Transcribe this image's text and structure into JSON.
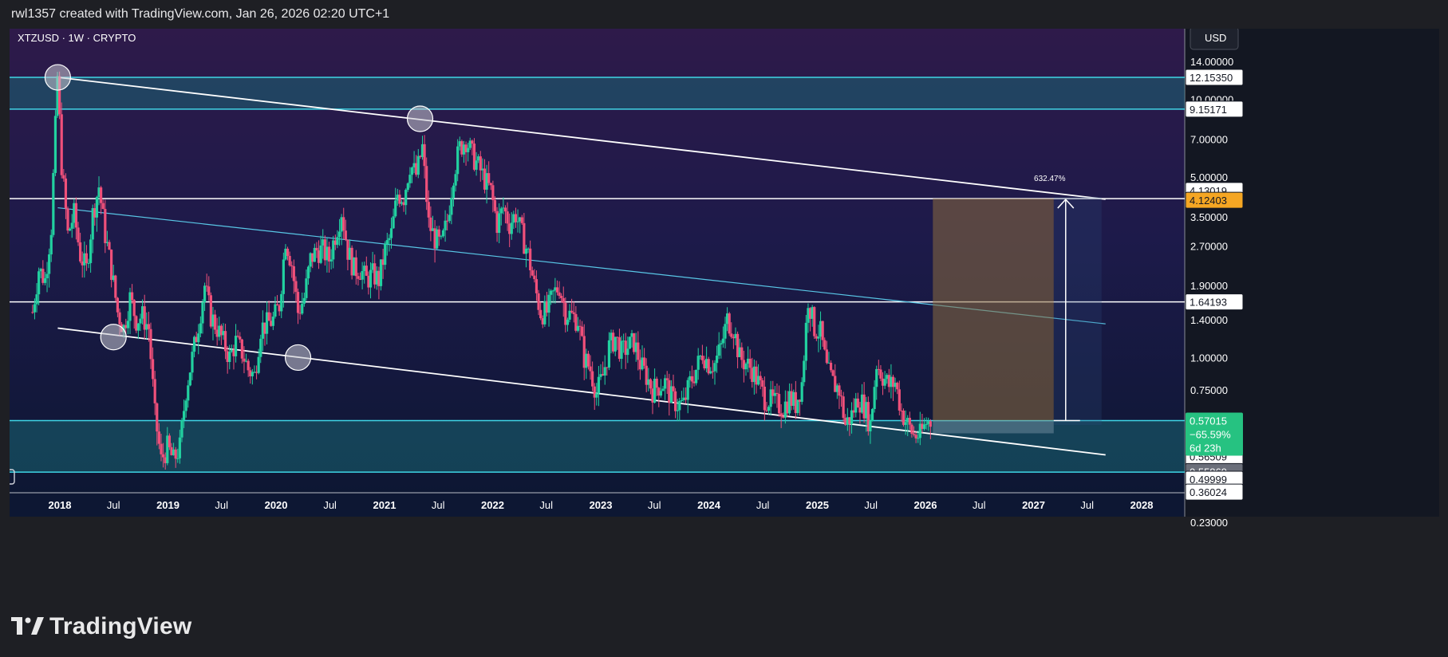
{
  "header": {
    "caption": "rwl1357 created with TradingView.com, Jan 26, 2026 02:20 UTC+1"
  },
  "footer": {
    "brand": "TradingView"
  },
  "chart_data": {
    "type": "candlestick",
    "title": "XTZUSD · 1W · CRYPTO",
    "currency_button": "USD",
    "y_scale": "log",
    "ylim": [
      0.22,
      22
    ],
    "x_tick_labels": [
      "2018",
      "Jul",
      "2019",
      "Jul",
      "2020",
      "Jul",
      "2021",
      "Jul",
      "2022",
      "Jul",
      "2023",
      "Jul",
      "2024",
      "Jul",
      "2025",
      "Jul",
      "2026",
      "Jul",
      "2027",
      "Jul",
      "2028"
    ],
    "y_tick_labels": [
      "14.00000",
      "10.00000",
      "7.00000",
      "5.00000",
      "3.50000",
      "2.70000",
      "1.90000",
      "1.40000",
      "1.00000",
      "0.75000",
      "0.23000"
    ],
    "price_tags": [
      {
        "text": "12.15350",
        "style": "outline"
      },
      {
        "text": "9.15171",
        "style": "outline"
      },
      {
        "text": "4.13019",
        "style": "outline"
      },
      {
        "text": "4.12403",
        "style": "orange"
      },
      {
        "text": "1.64193",
        "style": "outline"
      },
      {
        "text": "0.56509",
        "style": "outline"
      },
      {
        "text": "0.55869",
        "style": "gray"
      },
      {
        "text": "0.49999",
        "style": "outline"
      },
      {
        "text": "0.36024",
        "style": "outline"
      }
    ],
    "last_price": {
      "price": "0.57015",
      "change": "−65.59%",
      "countdown": "6d 23h"
    },
    "projection_label": "632.47%",
    "zones": [
      {
        "name": "upper resistance zone",
        "from": 9.15171,
        "to": 12.1535
      },
      {
        "name": "lower support zone",
        "from": 0.36024,
        "to": 0.57015
      }
    ],
    "horizontal_levels": [
      4.12403,
      1.64193
    ],
    "channel": {
      "upper": {
        "from": {
          "date": "2017-12-25",
          "price": 12.15
        },
        "to": {
          "date": "2027-09-01",
          "price": 4.1
        }
      },
      "middle": {
        "from": {
          "date": "2017-12-25",
          "price": 3.8
        },
        "to": {
          "date": "2027-09-01",
          "price": 1.35
        }
      },
      "lower": {
        "from": {
          "date": "2017-12-25",
          "price": 1.3
        },
        "to": {
          "date": "2027-09-01",
          "price": 0.42
        }
      }
    },
    "touch_points": [
      {
        "date": "2017-12-25",
        "price": 12.15
      },
      {
        "date": "2018-07-01",
        "price": 1.2
      },
      {
        "date": "2020-03-15",
        "price": 1.0
      },
      {
        "date": "2021-05-01",
        "price": 8.4
      }
    ],
    "projection": {
      "start_date": "2026-01-26",
      "end_date": "2027-03-10",
      "from": 0.57015,
      "to": 4.12403
    },
    "weekly_close_path": [
      [
        "2017-10-01",
        1.5
      ],
      [
        "2017-10-22",
        2.2
      ],
      [
        "2017-11-12",
        2.0
      ],
      [
        "2017-12-03",
        3.2
      ],
      [
        "2017-12-24",
        12.15
      ],
      [
        "2018-01-07",
        5.6
      ],
      [
        "2018-01-28",
        3.0
      ],
      [
        "2018-02-18",
        3.6
      ],
      [
        "2018-03-11",
        2.5
      ],
      [
        "2018-04-01",
        2.2
      ],
      [
        "2018-04-22",
        3.6
      ],
      [
        "2018-05-13",
        4.6
      ],
      [
        "2018-06-03",
        3.0
      ],
      [
        "2018-06-24",
        2.2
      ],
      [
        "2018-07-15",
        1.5
      ],
      [
        "2018-08-05",
        1.3
      ],
      [
        "2018-08-26",
        1.7
      ],
      [
        "2018-09-16",
        1.4
      ],
      [
        "2018-10-07",
        1.45
      ],
      [
        "2018-10-28",
        1.3
      ],
      [
        "2018-11-18",
        0.6
      ],
      [
        "2018-12-09",
        0.4
      ],
      [
        "2018-12-30",
        0.45
      ],
      [
        "2019-01-20",
        0.4
      ],
      [
        "2019-02-10",
        0.45
      ],
      [
        "2019-03-03",
        0.75
      ],
      [
        "2019-03-24",
        1.0
      ],
      [
        "2019-04-14",
        1.35
      ],
      [
        "2019-05-05",
        1.9
      ],
      [
        "2019-05-26",
        1.45
      ],
      [
        "2019-06-16",
        1.3
      ],
      [
        "2019-07-07",
        1.15
      ],
      [
        "2019-07-28",
        1.0
      ],
      [
        "2019-08-18",
        1.15
      ],
      [
        "2019-09-08",
        1.05
      ],
      [
        "2019-09-29",
        0.9
      ],
      [
        "2019-10-20",
        0.85
      ],
      [
        "2019-11-10",
        1.3
      ],
      [
        "2019-12-01",
        1.35
      ],
      [
        "2019-12-22",
        1.4
      ],
      [
        "2020-01-12",
        1.6
      ],
      [
        "2020-02-02",
        2.9
      ],
      [
        "2020-02-23",
        2.3
      ],
      [
        "2020-03-15",
        1.5
      ],
      [
        "2020-04-05",
        1.7
      ],
      [
        "2020-04-26",
        2.4
      ],
      [
        "2020-05-17",
        2.6
      ],
      [
        "2020-06-07",
        2.6
      ],
      [
        "2020-06-28",
        2.4
      ],
      [
        "2020-07-19",
        3.0
      ],
      [
        "2020-08-09",
        3.7
      ],
      [
        "2020-08-30",
        2.6
      ],
      [
        "2020-09-20",
        2.2
      ],
      [
        "2020-10-11",
        2.2
      ],
      [
        "2020-11-01",
        2.0
      ],
      [
        "2020-11-22",
        2.1
      ],
      [
        "2020-12-13",
        2.0
      ],
      [
        "2021-01-03",
        2.6
      ],
      [
        "2021-01-24",
        3.0
      ],
      [
        "2021-02-14",
        4.3
      ],
      [
        "2021-03-07",
        4.2
      ],
      [
        "2021-03-28",
        5.6
      ],
      [
        "2021-04-18",
        5.1
      ],
      [
        "2021-05-09",
        6.5
      ],
      [
        "2021-05-30",
        3.3
      ],
      [
        "2021-06-20",
        2.9
      ],
      [
        "2021-07-11",
        2.7
      ],
      [
        "2021-08-01",
        3.4
      ],
      [
        "2021-08-22",
        5.2
      ],
      [
        "2021-09-12",
        6.5
      ],
      [
        "2021-10-03",
        7.0
      ],
      [
        "2021-10-24",
        6.1
      ],
      [
        "2021-11-14",
        5.5
      ],
      [
        "2021-12-05",
        4.9
      ],
      [
        "2021-12-26",
        4.4
      ],
      [
        "2022-01-16",
        3.3
      ],
      [
        "2022-02-06",
        3.8
      ],
      [
        "2022-02-27",
        3.3
      ],
      [
        "2022-03-20",
        3.6
      ],
      [
        "2022-04-10",
        3.0
      ],
      [
        "2022-05-01",
        2.5
      ],
      [
        "2022-05-22",
        1.9
      ],
      [
        "2022-06-12",
        1.5
      ],
      [
        "2022-07-03",
        1.5
      ],
      [
        "2022-07-24",
        1.75
      ],
      [
        "2022-08-14",
        1.9
      ],
      [
        "2022-09-04",
        1.5
      ],
      [
        "2022-09-25",
        1.45
      ],
      [
        "2022-10-16",
        1.4
      ],
      [
        "2022-11-06",
        1.0
      ],
      [
        "2022-11-27",
        0.9
      ],
      [
        "2022-12-18",
        0.73
      ],
      [
        "2023-01-08",
        0.85
      ],
      [
        "2023-01-29",
        1.1
      ],
      [
        "2023-02-19",
        1.2
      ],
      [
        "2023-03-12",
        1.05
      ],
      [
        "2023-04-02",
        1.1
      ],
      [
        "2023-04-23",
        1.15
      ],
      [
        "2023-05-14",
        0.95
      ],
      [
        "2023-06-04",
        0.85
      ],
      [
        "2023-06-25",
        0.75
      ],
      [
        "2023-07-16",
        0.78
      ],
      [
        "2023-08-06",
        0.8
      ],
      [
        "2023-08-27",
        0.7
      ],
      [
        "2023-09-17",
        0.66
      ],
      [
        "2023-10-08",
        0.66
      ],
      [
        "2023-10-29",
        0.8
      ],
      [
        "2023-11-19",
        0.9
      ],
      [
        "2023-12-10",
        1.05
      ],
      [
        "2023-12-31",
        0.95
      ],
      [
        "2024-01-21",
        0.95
      ],
      [
        "2024-02-11",
        1.1
      ],
      [
        "2024-03-03",
        1.4
      ],
      [
        "2024-03-24",
        1.3
      ],
      [
        "2024-04-14",
        1.0
      ],
      [
        "2024-05-05",
        0.95
      ],
      [
        "2024-05-26",
        0.9
      ],
      [
        "2024-06-16",
        0.8
      ],
      [
        "2024-07-07",
        0.7
      ],
      [
        "2024-07-28",
        0.68
      ],
      [
        "2024-08-18",
        0.66
      ],
      [
        "2024-09-08",
        0.64
      ],
      [
        "2024-09-29",
        0.7
      ],
      [
        "2024-10-20",
        0.66
      ],
      [
        "2024-11-10",
        0.8
      ],
      [
        "2024-12-01",
        1.7
      ],
      [
        "2024-12-22",
        1.3
      ],
      [
        "2025-01-12",
        1.25
      ],
      [
        "2025-02-02",
        0.9
      ],
      [
        "2025-02-23",
        0.8
      ],
      [
        "2025-03-16",
        0.75
      ],
      [
        "2025-04-06",
        0.55
      ],
      [
        "2025-04-27",
        0.6
      ],
      [
        "2025-05-18",
        0.7
      ],
      [
        "2025-06-08",
        0.65
      ],
      [
        "2025-06-29",
        0.55
      ],
      [
        "2025-07-20",
        0.95
      ],
      [
        "2025-08-10",
        0.85
      ],
      [
        "2025-08-31",
        0.78
      ],
      [
        "2025-09-21",
        0.8
      ],
      [
        "2025-10-12",
        0.62
      ],
      [
        "2025-11-02",
        0.55
      ],
      [
        "2025-11-23",
        0.5
      ],
      [
        "2025-12-14",
        0.5
      ],
      [
        "2026-01-04",
        0.56
      ],
      [
        "2026-01-25",
        0.57015
      ]
    ]
  }
}
